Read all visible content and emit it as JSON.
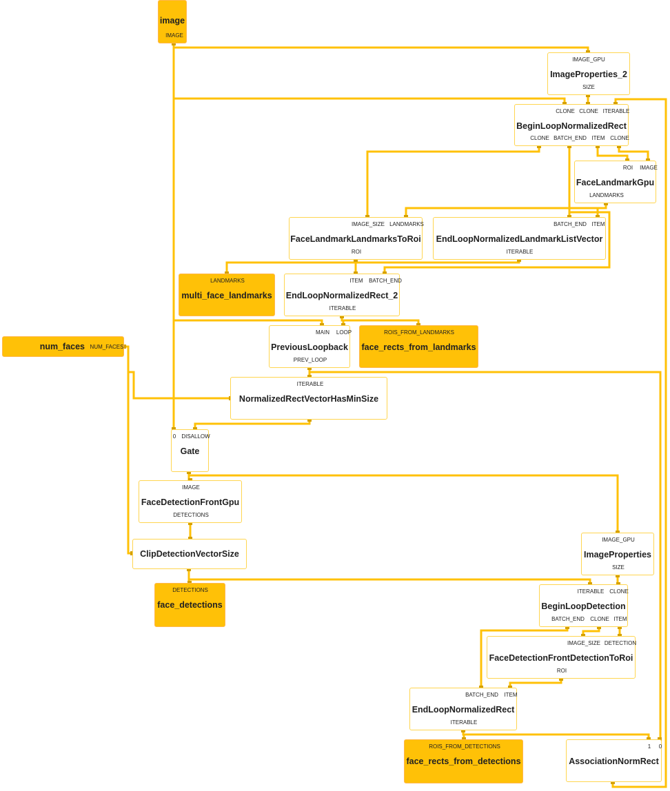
{
  "colors": {
    "edge": "#ffc107",
    "port": "#d4a000",
    "filled_node": "#ffc107",
    "node_border": "#ffd54f"
  },
  "nodes": [
    {
      "id": "image",
      "label": "image",
      "filled": true,
      "inputs": [],
      "outputs": [
        "IMAGE"
      ]
    },
    {
      "id": "imgprops2",
      "label": "ImageProperties_2",
      "filled": false,
      "inputs": [
        "IMAGE_GPU"
      ],
      "outputs": [
        "SIZE"
      ]
    },
    {
      "id": "beginrect",
      "label": "BeginLoopNormalizedRect",
      "filled": false,
      "inputs": [
        "CLONE",
        "CLONE",
        "ITERABLE"
      ],
      "outputs": [
        "CLONE",
        "BATCH_END",
        "ITEM",
        "CLONE"
      ]
    },
    {
      "id": "flgpu",
      "label": "FaceLandmarkGpu",
      "filled": false,
      "inputs": [
        "ROI",
        "IMAGE"
      ],
      "outputs": [
        "LANDMARKS"
      ]
    },
    {
      "id": "fl2roi",
      "label": "FaceLandmarkLandmarksToRoi",
      "filled": false,
      "inputs": [
        "IMAGE_SIZE",
        "LANDMARKS"
      ],
      "outputs": [
        "ROI"
      ]
    },
    {
      "id": "endlmk",
      "label": "EndLoopNormalizedLandmarkListVector",
      "filled": false,
      "inputs": [
        "BATCH_END",
        "ITEM"
      ],
      "outputs": [
        "ITERABLE"
      ]
    },
    {
      "id": "mfl",
      "label": "multi_face_landmarks",
      "filled": true,
      "inputs": [
        "LANDMARKS"
      ],
      "outputs": []
    },
    {
      "id": "endrect2",
      "label": "EndLoopNormalizedRect_2",
      "filled": false,
      "inputs": [
        "ITEM",
        "BATCH_END"
      ],
      "outputs": [
        "ITERABLE"
      ]
    },
    {
      "id": "prevloop",
      "label": "PreviousLoopback",
      "filled": false,
      "inputs": [
        "MAIN",
        "LOOP"
      ],
      "outputs": [
        "PREV_LOOP"
      ]
    },
    {
      "id": "frfl",
      "label": "face_rects_from_landmarks",
      "filled": true,
      "inputs": [
        "ROIS_FROM_LANDMARKS"
      ],
      "outputs": []
    },
    {
      "id": "numfaces",
      "label": "num_faces",
      "filled": true,
      "inputs": [],
      "outputs": [
        "NUM_FACES"
      ]
    },
    {
      "id": "hasmin",
      "label": "NormalizedRectVectorHasMinSize",
      "filled": false,
      "inputs": [
        "ITERABLE"
      ],
      "outputs": [
        ""
      ]
    },
    {
      "id": "gate",
      "label": "Gate",
      "filled": false,
      "inputs": [
        "0",
        "DISALLOW"
      ],
      "outputs": [
        ""
      ]
    },
    {
      "id": "fdgpu",
      "label": "FaceDetectionFrontGpu",
      "filled": false,
      "inputs": [
        "IMAGE"
      ],
      "outputs": [
        "DETECTIONS"
      ]
    },
    {
      "id": "clip",
      "label": "ClipDetectionVectorSize",
      "filled": false,
      "inputs": [
        ""
      ],
      "outputs": [
        ""
      ]
    },
    {
      "id": "fdet",
      "label": "face_detections",
      "filled": true,
      "inputs": [
        "DETECTIONS"
      ],
      "outputs": []
    },
    {
      "id": "imgprops",
      "label": "ImageProperties",
      "filled": false,
      "inputs": [
        "IMAGE_GPU"
      ],
      "outputs": [
        "SIZE"
      ]
    },
    {
      "id": "begindet",
      "label": "BeginLoopDetection",
      "filled": false,
      "inputs": [
        "ITERABLE",
        "CLONE"
      ],
      "outputs": [
        "BATCH_END",
        "CLONE",
        "ITEM"
      ]
    },
    {
      "id": "det2roi",
      "label": "FaceDetectionFrontDetectionToRoi",
      "filled": false,
      "inputs": [
        "IMAGE_SIZE",
        "DETECTION"
      ],
      "outputs": [
        "ROI"
      ]
    },
    {
      "id": "endrect",
      "label": "EndLoopNormalizedRect",
      "filled": false,
      "inputs": [
        "BATCH_END",
        "ITEM"
      ],
      "outputs": [
        "ITERABLE"
      ]
    },
    {
      "id": "frfd",
      "label": "face_rects_from_detections",
      "filled": true,
      "inputs": [
        "ROIS_FROM_DETECTIONS"
      ],
      "outputs": []
    },
    {
      "id": "assoc",
      "label": "AssociationNormRect",
      "filled": false,
      "inputs": [
        "1",
        "0"
      ],
      "outputs": [
        ""
      ]
    }
  ]
}
